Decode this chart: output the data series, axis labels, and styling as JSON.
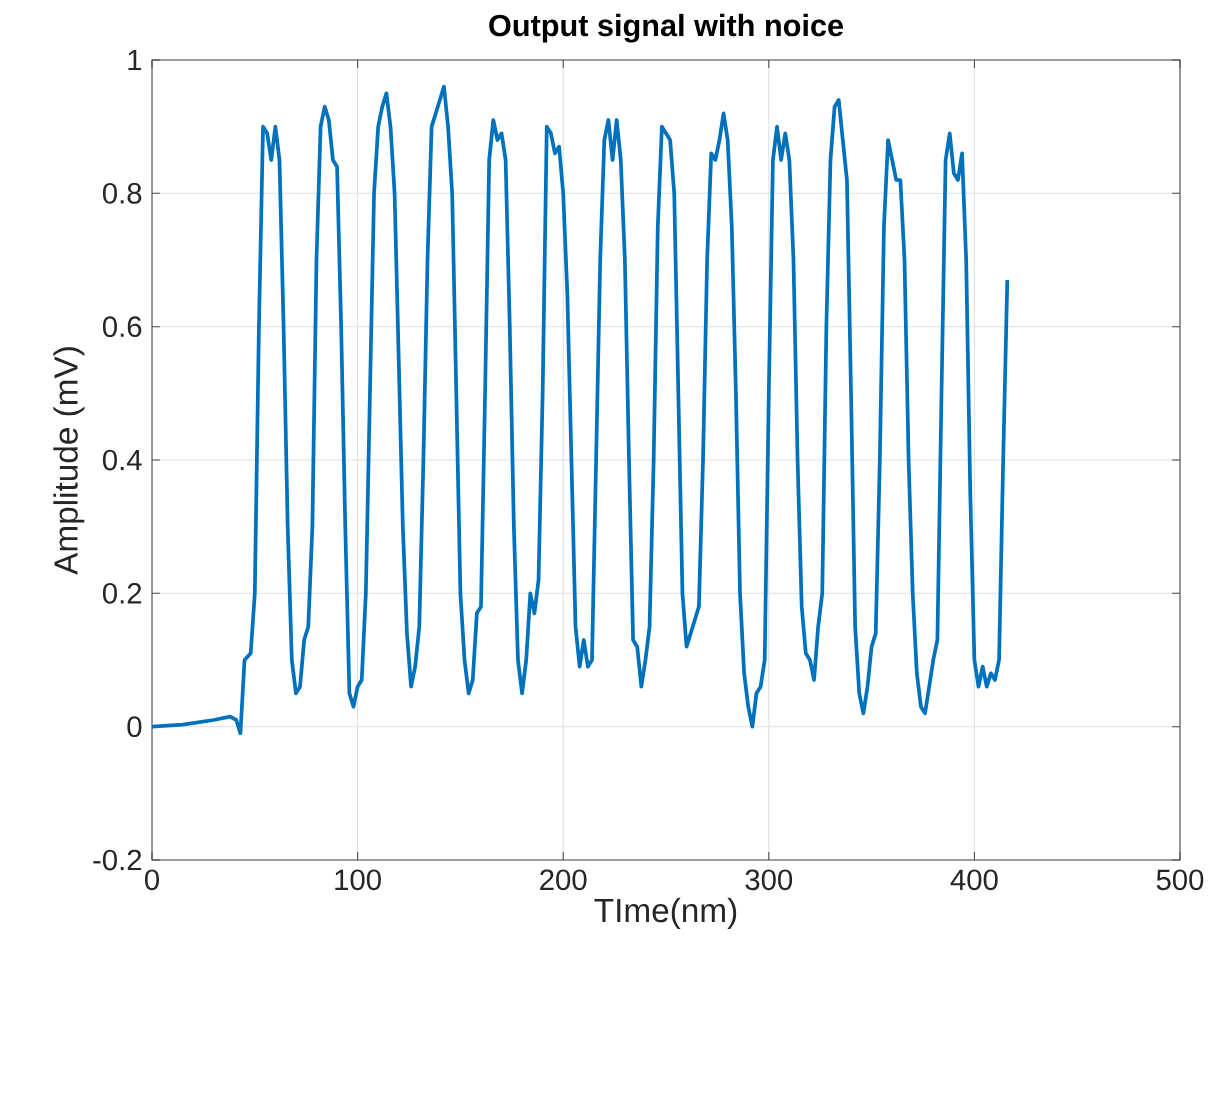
{
  "chart_data": {
    "type": "line",
    "title": "Output signal with noice",
    "xlabel": "TIme(nm)",
    "ylabel": "Amplitude (mV)",
    "xlim": [
      0,
      500
    ],
    "ylim": [
      -0.2,
      1
    ],
    "xticks": [
      0,
      100,
      200,
      300,
      400,
      500
    ],
    "yticks": [
      -0.2,
      0,
      0.2,
      0.4,
      0.6,
      0.8,
      1
    ],
    "grid": true,
    "series": [
      {
        "color": "#0072bd",
        "x": [
          0,
          15,
          30,
          38,
          41,
          43,
          45,
          48,
          50,
          52,
          54,
          56,
          58,
          60,
          62,
          64,
          66,
          68,
          70,
          72,
          74,
          76,
          78,
          80,
          82,
          84,
          86,
          88,
          90,
          92,
          94,
          96,
          98,
          100,
          102,
          104,
          106,
          108,
          110,
          112,
          114,
          116,
          118,
          120,
          122,
          124,
          126,
          128,
          130,
          132,
          134,
          136,
          138,
          140,
          142,
          144,
          146,
          148,
          150,
          152,
          154,
          156,
          158,
          160,
          162,
          164,
          166,
          168,
          170,
          172,
          174,
          176,
          178,
          180,
          182,
          184,
          186,
          188,
          190,
          192,
          194,
          196,
          198,
          200,
          202,
          204,
          206,
          208,
          210,
          212,
          214,
          216,
          218,
          220,
          222,
          224,
          226,
          228,
          230,
          232,
          234,
          236,
          238,
          240,
          242,
          244,
          246,
          248,
          250,
          252,
          254,
          256,
          258,
          260,
          262,
          264,
          266,
          268,
          270,
          272,
          274,
          276,
          278,
          280,
          282,
          284,
          286,
          288,
          290,
          292,
          294,
          296,
          298,
          300,
          302,
          304,
          306,
          308,
          310,
          312,
          314,
          316,
          318,
          320,
          322,
          324,
          326,
          328,
          330,
          332,
          334,
          336,
          338,
          340,
          342,
          344,
          346,
          348,
          350,
          352,
          354,
          356,
          358,
          360,
          362,
          364,
          366,
          368,
          370,
          372,
          374,
          376,
          378,
          380,
          382,
          384,
          386,
          388,
          390,
          392,
          394,
          396,
          398,
          400,
          402,
          404,
          406,
          408,
          410,
          412,
          414,
          416
        ],
        "values": [
          0,
          0.003,
          0.01,
          0.015,
          0.01,
          -0.01,
          0.1,
          0.11,
          0.2,
          0.6,
          0.9,
          0.89,
          0.85,
          0.9,
          0.85,
          0.6,
          0.3,
          0.1,
          0.05,
          0.06,
          0.13,
          0.15,
          0.3,
          0.7,
          0.9,
          0.93,
          0.91,
          0.85,
          0.84,
          0.6,
          0.3,
          0.05,
          0.03,
          0.06,
          0.07,
          0.2,
          0.5,
          0.8,
          0.9,
          0.93,
          0.95,
          0.9,
          0.8,
          0.55,
          0.3,
          0.14,
          0.06,
          0.09,
          0.15,
          0.4,
          0.7,
          0.9,
          0.92,
          0.94,
          0.96,
          0.9,
          0.8,
          0.5,
          0.2,
          0.1,
          0.05,
          0.07,
          0.17,
          0.18,
          0.5,
          0.85,
          0.91,
          0.88,
          0.89,
          0.85,
          0.6,
          0.3,
          0.1,
          0.05,
          0.1,
          0.2,
          0.17,
          0.22,
          0.5,
          0.9,
          0.89,
          0.86,
          0.87,
          0.8,
          0.65,
          0.4,
          0.15,
          0.09,
          0.13,
          0.09,
          0.1,
          0.4,
          0.7,
          0.88,
          0.91,
          0.85,
          0.91,
          0.85,
          0.7,
          0.4,
          0.13,
          0.12,
          0.06,
          0.1,
          0.15,
          0.4,
          0.75,
          0.9,
          0.89,
          0.88,
          0.8,
          0.5,
          0.2,
          0.12,
          0.14,
          0.16,
          0.18,
          0.4,
          0.7,
          0.86,
          0.85,
          0.88,
          0.92,
          0.88,
          0.75,
          0.5,
          0.2,
          0.08,
          0.03,
          0,
          0.05,
          0.06,
          0.1,
          0.5,
          0.85,
          0.9,
          0.85,
          0.89,
          0.85,
          0.7,
          0.4,
          0.18,
          0.11,
          0.1,
          0.07,
          0.15,
          0.2,
          0.6,
          0.85,
          0.93,
          0.94,
          0.88,
          0.82,
          0.5,
          0.15,
          0.05,
          0.02,
          0.06,
          0.12,
          0.14,
          0.4,
          0.75,
          0.88,
          0.85,
          0.82,
          0.82,
          0.7,
          0.4,
          0.2,
          0.08,
          0.03,
          0.02,
          0.06,
          0.1,
          0.13,
          0.5,
          0.85,
          0.89,
          0.83,
          0.82,
          0.86,
          0.7,
          0.35,
          0.1,
          0.06,
          0.09,
          0.06,
          0.08,
          0.07,
          0.1,
          0.4,
          0.67
        ]
      }
    ]
  }
}
